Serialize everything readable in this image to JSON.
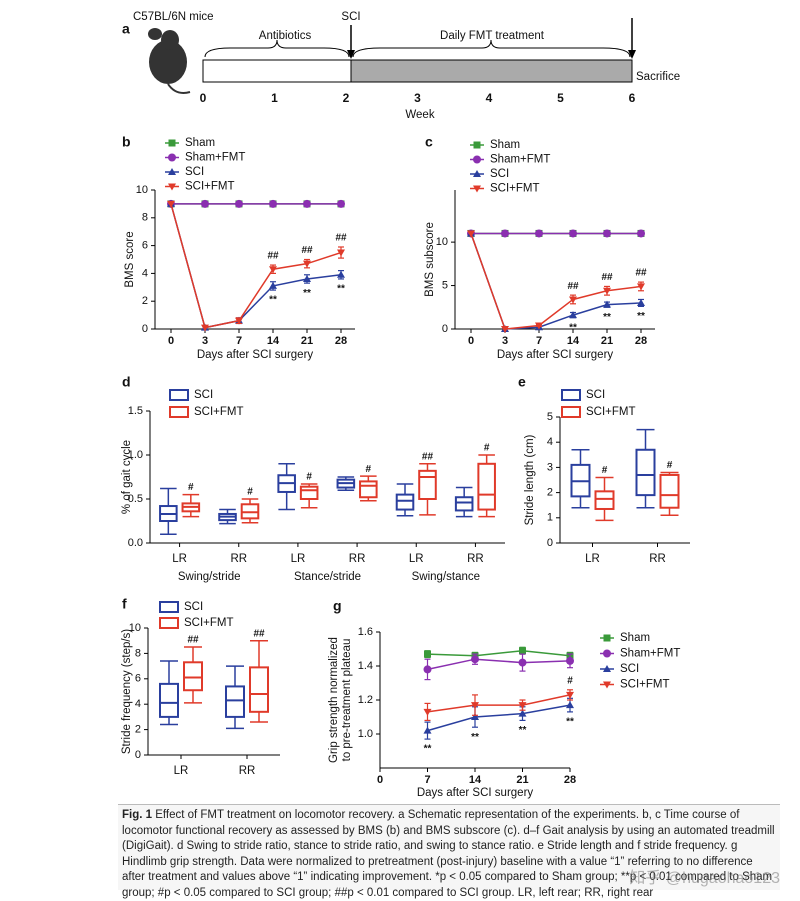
{
  "panel_a": {
    "panel": "a",
    "mouse": "C57BL/6N  mice",
    "event_sci": "SCI",
    "phase_1": "Antibiotics",
    "phase_2": "Daily FMT treatment",
    "event_end": "Sacrifice",
    "weeks": [
      0,
      1,
      2,
      3,
      4,
      5,
      6
    ],
    "xlabel": "Week"
  },
  "chart_data": [
    {
      "type": "line",
      "panel": "b",
      "ylabel": "BMS score",
      "xlabel": "Days after SCI surgery",
      "categories": [
        "0",
        "3",
        "7",
        "14",
        "21",
        "28"
      ],
      "ylim": [
        0,
        10
      ],
      "yticks": [
        0,
        2,
        4,
        6,
        8,
        10
      ],
      "series": [
        {
          "name": "Sham",
          "color": "#3a9a3a",
          "marker": "square",
          "values": [
            9,
            9,
            9,
            9,
            9,
            9
          ]
        },
        {
          "name": "Sham+FMT",
          "color": "#8a2fb0",
          "marker": "circle",
          "values": [
            9,
            9,
            9,
            9,
            9,
            9
          ]
        },
        {
          "name": "SCI",
          "color": "#2a3f9e",
          "marker": "triangle-up",
          "values": [
            9,
            0.1,
            0.6,
            3.1,
            3.6,
            3.9
          ],
          "errors": [
            null,
            null,
            0.2,
            0.3,
            0.3,
            0.3
          ],
          "annotations": [
            null,
            null,
            null,
            "**",
            "**",
            "**"
          ]
        },
        {
          "name": "SCI+FMT",
          "color": "#e03a2a",
          "marker": "triangle-down",
          "values": [
            9,
            0.1,
            0.6,
            4.3,
            4.7,
            5.5
          ],
          "errors": [
            null,
            null,
            0.2,
            0.3,
            0.3,
            0.4
          ],
          "annotations": [
            null,
            null,
            null,
            "##",
            "##",
            "##"
          ]
        }
      ]
    },
    {
      "type": "line",
      "panel": "c",
      "ylabel": "BMS subscore",
      "xlabel": "Days after SCI surgery",
      "categories": [
        "0",
        "3",
        "7",
        "14",
        "21",
        "28"
      ],
      "ylim": [
        0,
        16
      ],
      "yticks": [
        0,
        5,
        10
      ],
      "series": [
        {
          "name": "Sham",
          "color": "#3a9a3a",
          "marker": "square",
          "values": [
            11,
            11,
            11,
            11,
            11,
            11
          ]
        },
        {
          "name": "Sham+FMT",
          "color": "#8a2fb0",
          "marker": "circle",
          "values": [
            11,
            11,
            11,
            11,
            11,
            11
          ]
        },
        {
          "name": "SCI",
          "color": "#2a3f9e",
          "marker": "triangle-up",
          "values": [
            11,
            0,
            0.2,
            1.6,
            2.8,
            3.0
          ],
          "errors": [
            null,
            null,
            0.1,
            0.3,
            0.3,
            0.4
          ],
          "annotations": [
            null,
            null,
            null,
            "**",
            "**",
            "**"
          ]
        },
        {
          "name": "SCI+FMT",
          "color": "#e03a2a",
          "marker": "triangle-down",
          "values": [
            11,
            0,
            0.4,
            3.4,
            4.4,
            4.9
          ],
          "errors": [
            null,
            null,
            0.1,
            0.5,
            0.5,
            0.5
          ],
          "annotations": [
            null,
            null,
            null,
            "##",
            "##",
            "##"
          ]
        }
      ]
    },
    {
      "type": "box",
      "panel": "d",
      "ylabel": "% of gait cycle",
      "categories": [
        "LR",
        "RR",
        "LR",
        "RR",
        "LR",
        "RR"
      ],
      "groups": [
        "Swing/stride",
        "Stance/stride",
        "Swing/stance"
      ],
      "ylim": [
        0,
        1.5
      ],
      "yticks": [
        {
          "value": 0,
          "label": "0.0"
        },
        {
          "value": 0.5,
          "label": "0.5"
        },
        {
          "value": 1,
          "label": "1.0"
        },
        {
          "value": 1.5,
          "label": "1.5"
        }
      ],
      "series": [
        {
          "name": "SCI",
          "color": "#2a3f9e",
          "boxes": [
            {
              "min": 0.1,
              "q1": 0.25,
              "median": 0.33,
              "q3": 0.42,
              "max": 0.62
            },
            {
              "min": 0.22,
              "q1": 0.26,
              "median": 0.3,
              "q3": 0.33,
              "max": 0.38
            },
            {
              "min": 0.38,
              "q1": 0.58,
              "median": 0.68,
              "q3": 0.77,
              "max": 0.9
            },
            {
              "min": 0.6,
              "q1": 0.63,
              "median": 0.68,
              "q3": 0.72,
              "max": 0.75
            },
            {
              "min": 0.31,
              "q1": 0.38,
              "median": 0.48,
              "q3": 0.55,
              "max": 0.67
            },
            {
              "min": 0.3,
              "q1": 0.37,
              "median": 0.46,
              "q3": 0.52,
              "max": 0.63
            }
          ]
        },
        {
          "name": "SCI+FMT",
          "color": "#e03a2a",
          "annotations": [
            "#",
            "#",
            "#",
            "#",
            "##",
            "#"
          ],
          "boxes": [
            {
              "min": 0.3,
              "q1": 0.36,
              "median": 0.41,
              "q3": 0.45,
              "max": 0.55
            },
            {
              "min": 0.23,
              "q1": 0.28,
              "median": 0.35,
              "q3": 0.44,
              "max": 0.5
            },
            {
              "min": 0.4,
              "q1": 0.5,
              "median": 0.6,
              "q3": 0.64,
              "max": 0.67
            },
            {
              "min": 0.48,
              "q1": 0.52,
              "median": 0.65,
              "q3": 0.7,
              "max": 0.76
            },
            {
              "min": 0.32,
              "q1": 0.5,
              "median": 0.75,
              "q3": 0.82,
              "max": 0.9
            },
            {
              "min": 0.3,
              "q1": 0.38,
              "median": 0.55,
              "q3": 0.9,
              "max": 1.0
            }
          ]
        }
      ]
    },
    {
      "type": "box",
      "panel": "e",
      "ylabel": "Stride length (cm)",
      "categories": [
        "LR",
        "RR"
      ],
      "ylim": [
        0,
        5
      ],
      "yticks": [
        0,
        1,
        2,
        3,
        4,
        5
      ],
      "series": [
        {
          "name": "SCI",
          "color": "#2a3f9e",
          "boxes": [
            {
              "min": 1.4,
              "q1": 1.85,
              "median": 2.45,
              "q3": 3.1,
              "max": 3.7
            },
            {
              "min": 1.4,
              "q1": 1.9,
              "median": 2.7,
              "q3": 3.7,
              "max": 4.5
            }
          ]
        },
        {
          "name": "SCI+FMT",
          "color": "#e03a2a",
          "annotations": [
            "#",
            "#"
          ],
          "boxes": [
            {
              "min": 0.9,
              "q1": 1.35,
              "median": 1.75,
              "q3": 2.05,
              "max": 2.6
            },
            {
              "min": 1.1,
              "q1": 1.4,
              "median": 1.9,
              "q3": 2.7,
              "max": 2.8
            }
          ]
        }
      ]
    },
    {
      "type": "box",
      "panel": "f",
      "ylabel": "Stride frequency (step/s)",
      "categories": [
        "LR",
        "RR"
      ],
      "ylim": [
        0,
        10
      ],
      "yticks": [
        0,
        2,
        4,
        6,
        8,
        10
      ],
      "series": [
        {
          "name": "SCI",
          "color": "#2a3f9e",
          "boxes": [
            {
              "min": 2.4,
              "q1": 3.0,
              "median": 4.1,
              "q3": 5.6,
              "max": 7.4
            },
            {
              "min": 2.1,
              "q1": 3.0,
              "median": 4.3,
              "q3": 5.4,
              "max": 7.0
            }
          ]
        },
        {
          "name": "SCI+FMT",
          "color": "#e03a2a",
          "annotations": [
            "##",
            "##"
          ],
          "boxes": [
            {
              "min": 4.1,
              "q1": 5.1,
              "median": 6.1,
              "q3": 7.3,
              "max": 8.5
            },
            {
              "min": 2.6,
              "q1": 3.4,
              "median": 4.8,
              "q3": 6.9,
              "max": 9.0
            }
          ]
        }
      ]
    },
    {
      "type": "line",
      "panel": "g",
      "ylabel": [
        "Grip strength normalized",
        "to pre-treatment plateau"
      ],
      "xlabel": "Days after SCI surgery",
      "x": [
        7,
        14,
        21,
        28
      ],
      "xlim": [
        0,
        28
      ],
      "xticks": [
        0,
        7,
        14,
        21,
        28
      ],
      "ylim": [
        0.8,
        1.6
      ],
      "yticks": [
        {
          "value": 1,
          "label": "1.0"
        },
        {
          "value": 1.2,
          "label": "1.2"
        },
        {
          "value": 1.4,
          "label": "1.4"
        },
        {
          "value": 1.6,
          "label": "1.6"
        }
      ],
      "series": [
        {
          "name": "Sham",
          "color": "#3a9a3a",
          "marker": "square",
          "values": [
            1.47,
            1.46,
            1.49,
            1.46
          ],
          "errors": [
            0.02,
            0.02,
            0.02,
            0.02
          ]
        },
        {
          "name": "Sham+FMT",
          "color": "#8a2fb0",
          "marker": "circle",
          "values": [
            1.38,
            1.44,
            1.42,
            1.43
          ],
          "errors": [
            0.06,
            0.03,
            0.05,
            0.04
          ]
        },
        {
          "name": "SCI",
          "color": "#2a3f9e",
          "marker": "triangle-up",
          "values": [
            1.02,
            1.1,
            1.12,
            1.17
          ],
          "errors": [
            0.05,
            0.06,
            0.04,
            0.04
          ],
          "annotations": [
            "**",
            "**",
            "**",
            "**"
          ]
        },
        {
          "name": "SCI+FMT",
          "color": "#e03a2a",
          "marker": "triangle-down",
          "values": [
            1.13,
            1.17,
            1.17,
            1.23
          ],
          "errors": [
            0.05,
            0.06,
            0.03,
            0.03
          ],
          "annotations": [
            null,
            null,
            null,
            "#"
          ]
        }
      ]
    }
  ],
  "caption": {
    "label": "Fig. 1",
    "text": "Effect of FMT treatment on locomotor recovery. a Schematic representation of the experiments. b, c Time course of locomotor functional recovery as assessed by BMS (b) and BMS subscore (c). d–f Gait analysis by using an automated treadmill (DigiGait). d Swing to stride ratio, stance to stride ratio, and swing to stance ratio. e Stride length and f stride frequency. g Hindlimb grip strength. Data were normalized to pretreatment (post-injury) baseline with a value “1” referring to no difference after treatment and values above “1” indicating improvement. *p < 0.05 compared to Sham group; **p < 0.01 compared to Sham group; #p < 0.05 compared to SCI group; ##p < 0.01 compared to SCI group. LR, left rear; RR, right rear"
  },
  "watermark": "知乎 @hugaohao123"
}
